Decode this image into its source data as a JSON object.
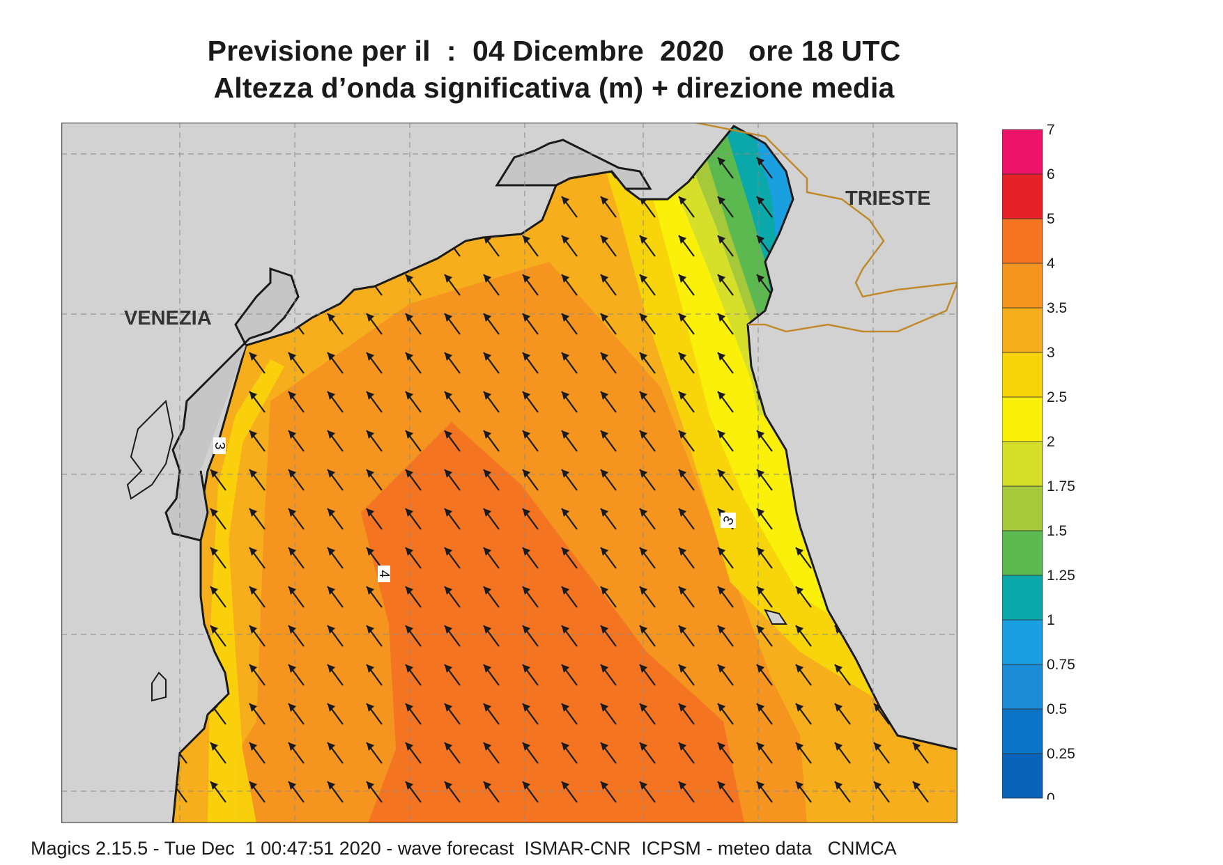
{
  "title": {
    "line1": "Previsione per il  :  04 Dicembre  2020   ore 18 UTC",
    "line2": "Altezza d’onda significativa (m) + direzione media"
  },
  "map": {
    "cities": [
      {
        "name": "VENEZIA"
      },
      {
        "name": "TRIESTE"
      }
    ],
    "contour_labels": [
      "3",
      "3",
      "4"
    ],
    "arrow_direction": "north-west",
    "colors": {
      "land": "#d2d2d2",
      "coast": "#1a1a1a",
      "border": "#c08a2a",
      "grid": "#8a8a8a"
    }
  },
  "legend": {
    "ticks": [
      "0",
      "0.25",
      "0.5",
      "0.75",
      "1",
      "1.25",
      "1.5",
      "1.75",
      "2",
      "2.5",
      "3",
      "3.5",
      "4",
      "5",
      "6",
      "7"
    ],
    "colors": [
      "#0a63b8",
      "#0a74c6",
      "#1b8bd6",
      "#1aa0e0",
      "#0aa8a8",
      "#5cb94f",
      "#a6c93c",
      "#d6e02a",
      "#faf00a",
      "#f8d40a",
      "#f7ae1c",
      "#f5951f",
      "#f47421",
      "#e62027",
      "#ec1368"
    ]
  },
  "footer": "Magics 2.15.5 - Tue Dec  1 00:47:51 2020 - wave forecast  ISMAR-CNR  ICPSM - meteo data   CNMCA"
}
